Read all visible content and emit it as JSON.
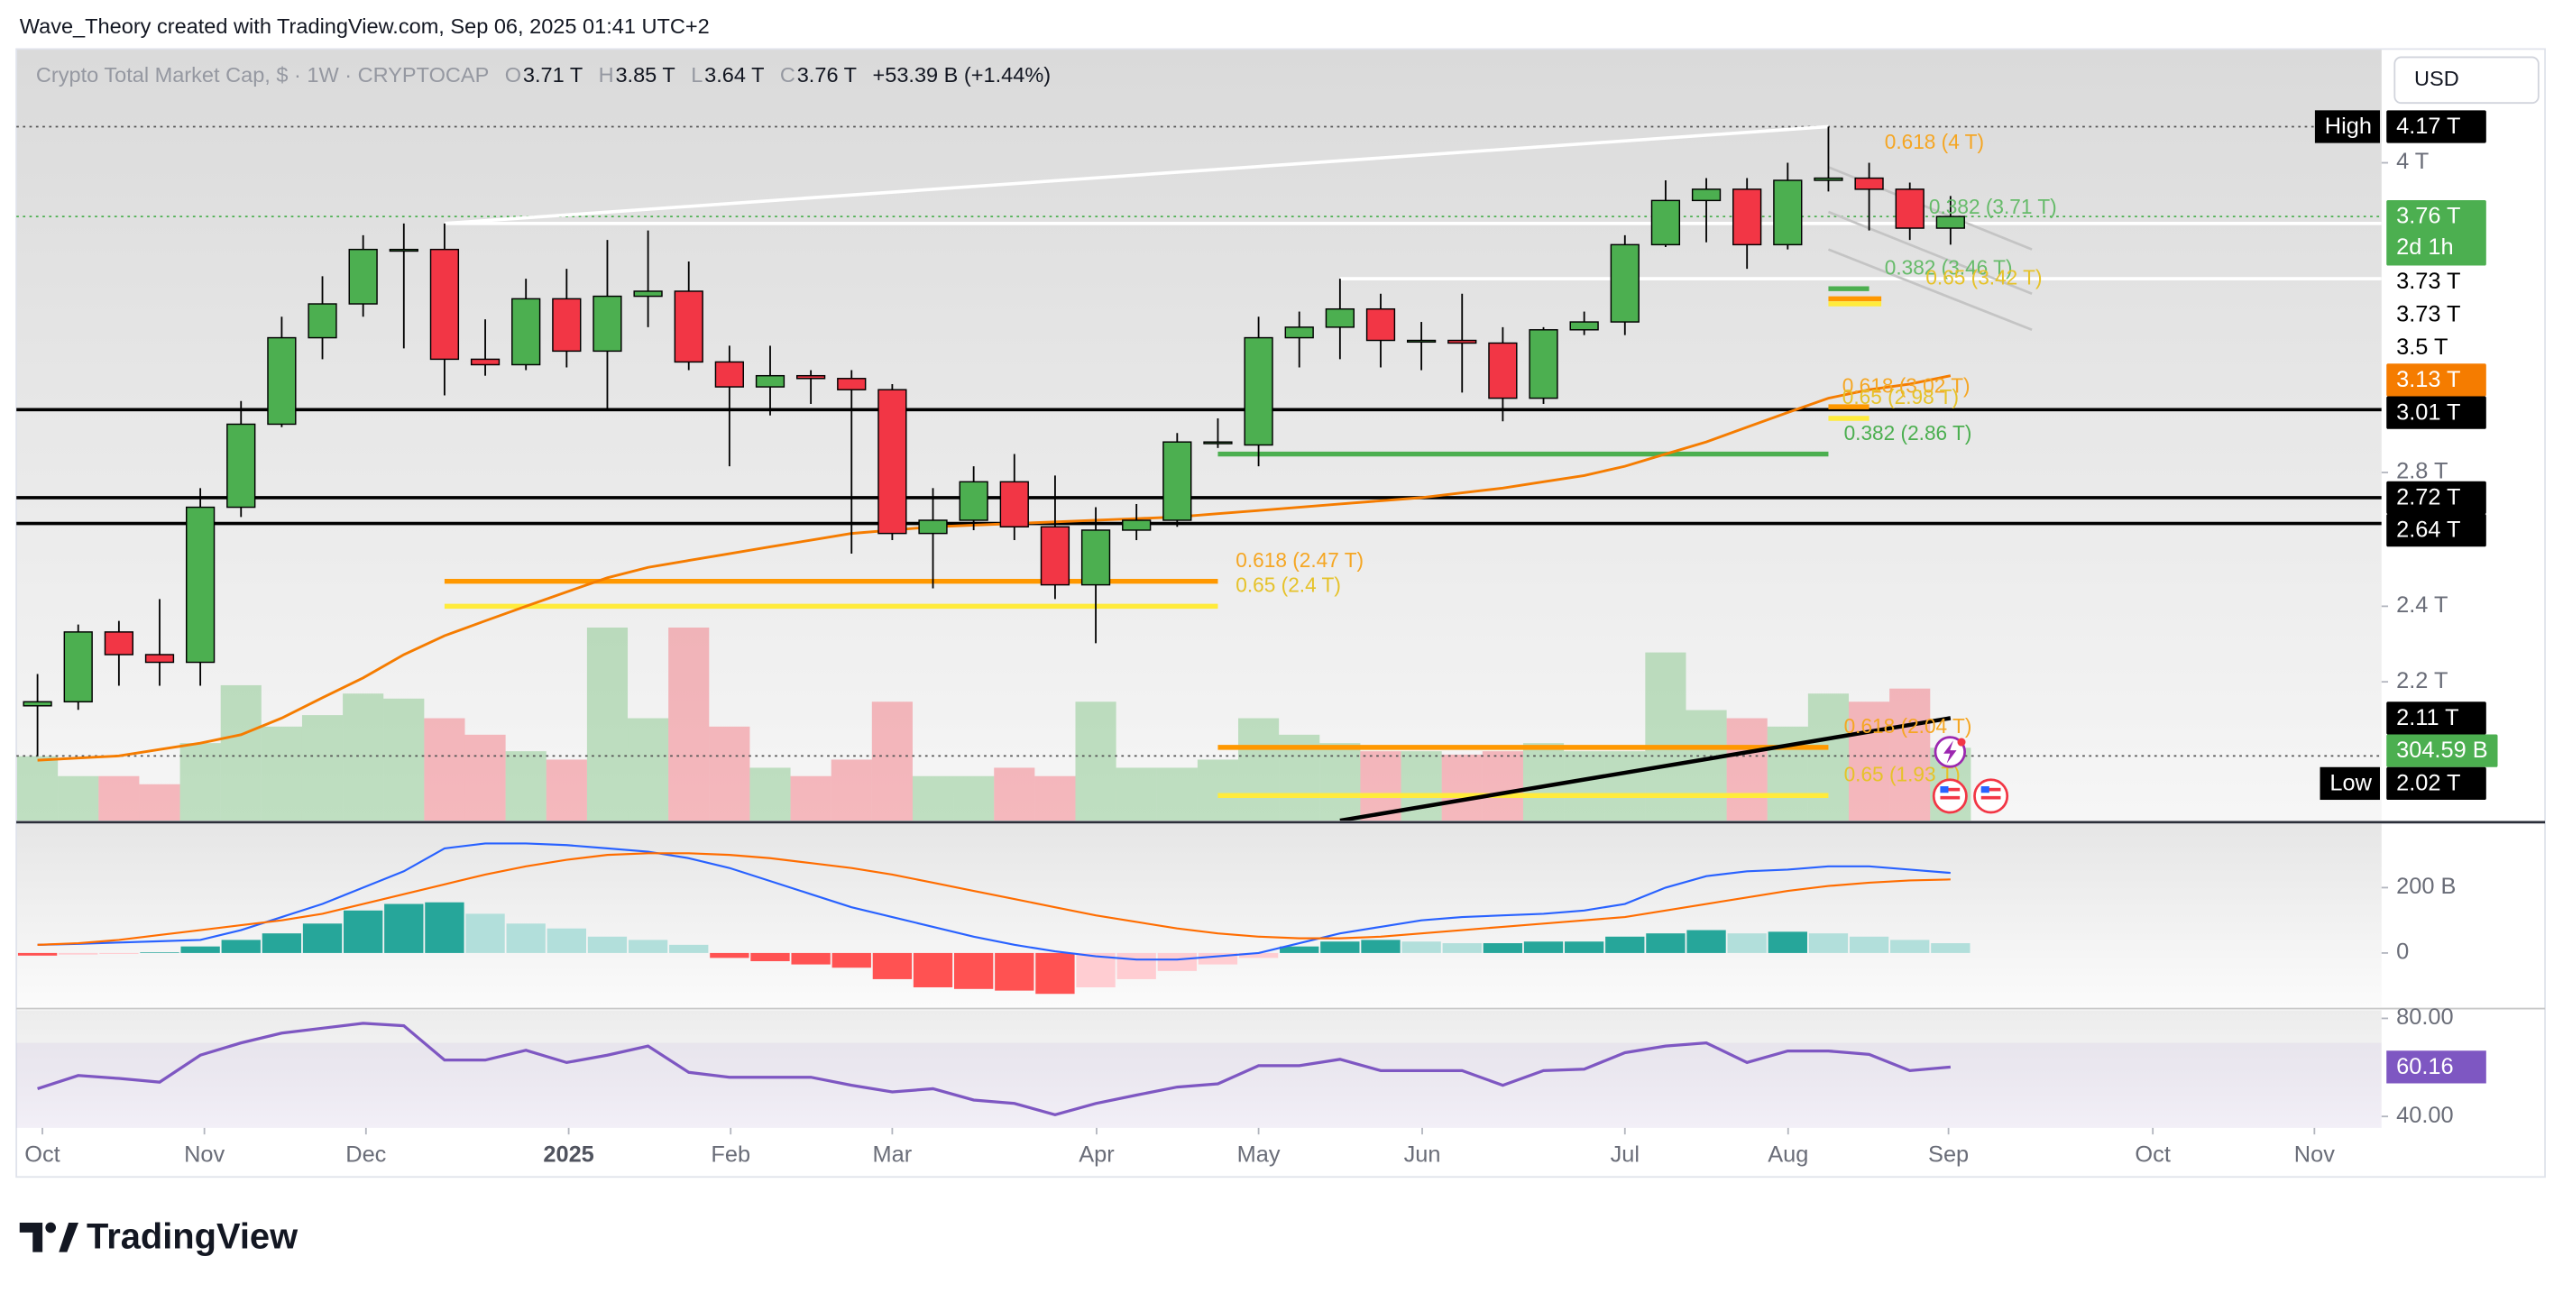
{
  "header": {
    "attribution": "Wave_Theory created with TradingView.com, Sep 06, 2025 01:41 UTC+2",
    "currency": "USD"
  },
  "legend": {
    "symbol": "Crypto Total Market Cap, $ · 1W · CRYPTOCAP",
    "fields": [
      {
        "key": "O",
        "value": "3.71 T"
      },
      {
        "key": "H",
        "value": "3.85 T"
      },
      {
        "key": "L",
        "value": "3.64 T"
      },
      {
        "key": "C",
        "value": "3.76 T"
      }
    ],
    "change": "+53.39 B (+1.44%)"
  },
  "footer": {
    "brand": "TradingView"
  },
  "chart_data": [
    {
      "type": "candlestick",
      "log_scale": true,
      "up_color": "#4caf50",
      "down_color": "#f23645",
      "wick_color": "#000000",
      "categories": [
        null,
        null,
        null,
        null,
        null,
        null,
        null,
        null,
        null,
        null,
        null,
        null,
        null,
        null,
        null,
        null,
        null,
        null,
        null,
        null,
        null,
        null,
        null,
        null,
        null,
        null,
        null,
        null,
        null,
        null,
        null,
        null,
        null,
        null,
        null,
        null,
        null,
        null,
        null,
        null,
        null,
        null,
        null,
        null,
        null,
        null,
        null,
        null
      ],
      "open": [
        2.14,
        2.15,
        2.33,
        2.27,
        2.25,
        2.69,
        2.96,
        3.27,
        3.4,
        3.62,
        3.62,
        3.19,
        3.17,
        3.42,
        3.22,
        3.43,
        3.45,
        3.18,
        3.09,
        3.13,
        3.12,
        3.08,
        2.61,
        2.65,
        2.77,
        2.63,
        2.46,
        2.62,
        2.65,
        2.9,
        2.89,
        3.27,
        3.31,
        3.38,
        3.26,
        3.26,
        3.25,
        3.05,
        3.3,
        3.33,
        3.64,
        3.83,
        3.88,
        3.64,
        3.92,
        3.93,
        3.88,
        3.71
      ],
      "high": [
        2.22,
        2.35,
        2.36,
        2.42,
        2.75,
        3.04,
        3.35,
        3.51,
        3.68,
        3.73,
        3.73,
        3.34,
        3.5,
        3.54,
        3.66,
        3.7,
        3.57,
        3.24,
        3.24,
        3.15,
        3.15,
        3.1,
        2.75,
        2.82,
        2.86,
        2.79,
        2.69,
        2.7,
        2.93,
        2.98,
        3.35,
        3.37,
        3.5,
        3.44,
        3.33,
        3.44,
        3.31,
        3.31,
        3.37,
        3.68,
        3.92,
        3.93,
        3.93,
        4.0,
        4.17,
        4.0,
        3.91,
        3.85
      ],
      "low": [
        2.02,
        2.13,
        2.19,
        2.19,
        2.19,
        2.66,
        2.95,
        3.19,
        3.35,
        3.23,
        3.06,
        3.13,
        3.15,
        3.16,
        3.01,
        3.31,
        3.15,
        2.82,
        2.99,
        3.03,
        2.55,
        2.59,
        2.45,
        2.62,
        2.59,
        2.42,
        2.3,
        2.59,
        2.63,
        2.88,
        2.82,
        3.16,
        3.19,
        3.16,
        3.15,
        3.07,
        2.97,
        3.03,
        3.28,
        3.28,
        3.63,
        3.65,
        3.54,
        3.62,
        3.87,
        3.7,
        3.66,
        3.64
      ],
      "close": [
        2.15,
        2.33,
        2.27,
        2.25,
        2.69,
        2.96,
        3.27,
        3.4,
        3.62,
        3.62,
        3.19,
        3.17,
        3.42,
        3.22,
        3.43,
        3.45,
        3.18,
        3.09,
        3.13,
        3.12,
        3.08,
        2.61,
        2.65,
        2.77,
        2.63,
        2.46,
        2.62,
        2.65,
        2.9,
        2.9,
        3.27,
        3.31,
        3.38,
        3.26,
        3.26,
        3.25,
        3.05,
        3.3,
        3.33,
        3.64,
        3.83,
        3.88,
        3.64,
        3.92,
        3.93,
        3.88,
        3.71,
        3.76
      ],
      "xlim": [
        -0.52,
        57.59
      ],
      "ylim": [
        1.875,
        4.56
      ],
      "yticks": [
        {
          "value": 4,
          "label": "4 T"
        },
        {
          "value": 2.8,
          "label": "2.8 T"
        },
        {
          "value": 2.4,
          "label": "2.4 T"
        },
        {
          "value": 2.2,
          "label": "2.2 T"
        }
      ],
      "moving_average": {
        "color": "#f57c00",
        "values": [
          2.01,
          2.015,
          2.02,
          2.035,
          2.05,
          2.07,
          2.11,
          2.16,
          2.21,
          2.27,
          2.32,
          2.36,
          2.4,
          2.44,
          2.48,
          2.51,
          2.53,
          2.55,
          2.57,
          2.59,
          2.61,
          2.62,
          2.63,
          2.635,
          2.64,
          2.645,
          2.65,
          2.655,
          2.66,
          2.67,
          2.68,
          2.69,
          2.7,
          2.71,
          2.72,
          2.735,
          2.75,
          2.77,
          2.79,
          2.82,
          2.86,
          2.9,
          2.95,
          3.0,
          3.05,
          3.08,
          3.1,
          3.13
        ]
      },
      "volume": {
        "ylim": [
          0,
          1000
        ],
        "opacity": 0.32,
        "values": [
          269,
          186,
          186,
          152,
          324,
          566,
          393,
          441,
          531,
          510,
          428,
          359,
          290,
          255,
          807,
          428,
          807,
          393,
          221,
          186,
          255,
          497,
          186,
          186,
          221,
          186,
          497,
          221,
          221,
          255,
          428,
          359,
          324,
          290,
          290,
          276,
          290,
          324,
          290,
          290,
          703,
          462,
          428,
          393,
          531,
          497,
          552,
          304.59
        ]
      },
      "lines": [
        {
          "price": 4.17,
          "x0": -0.52,
          "x1": 57.59,
          "color": "#555555",
          "width": 1,
          "dash": "dotted"
        },
        {
          "price": 3.76,
          "x0": -0.52,
          "x1": 57.59,
          "color": "#4caf50",
          "width": 1,
          "dash": "dotted"
        },
        {
          "price": 2.02,
          "x0": -0.52,
          "x1": 57.59,
          "color": "#555555",
          "width": 1,
          "dash": "dotted"
        },
        {
          "price": 3.73,
          "x0": 10.0,
          "x1": 57.59,
          "color": "#ffffff",
          "width": 2
        },
        {
          "price": 3.5,
          "x0": 32.0,
          "x1": 57.59,
          "color": "#ffffff",
          "width": 2
        },
        {
          "price": 3.01,
          "x0": -0.52,
          "x1": 57.59,
          "color": "#000000",
          "width": 2
        },
        {
          "price": 2.72,
          "x0": -0.52,
          "x1": 57.59,
          "color": "#000000",
          "width": 2
        },
        {
          "price": 2.64,
          "x0": -0.52,
          "x1": 57.59,
          "color": "#000000",
          "width": 2
        },
        {
          "price": 2.47,
          "x0": 10.0,
          "x1": 29.0,
          "color": "#ff9800",
          "width": 3
        },
        {
          "price": 2.4,
          "x0": 10.0,
          "x1": 29.0,
          "color": "#ffeb3b",
          "width": 3
        },
        {
          "price": 2.86,
          "x0": 29.0,
          "x1": 44.0,
          "color": "#4caf50",
          "width": 3
        },
        {
          "price": 2.04,
          "x0": 29.0,
          "x1": 44.0,
          "color": "#ff9800",
          "width": 3
        },
        {
          "price": 1.93,
          "x0": 29.0,
          "x1": 44.0,
          "color": "#ffeb3b",
          "width": 3
        },
        {
          "price": 3.46,
          "x0": 44.0,
          "x1": 45.0,
          "color": "#4caf50",
          "width": 3
        },
        {
          "price": 3.42,
          "x0": 44.0,
          "x1": 45.3,
          "color": "#ff9800",
          "width": 3
        },
        {
          "price": 3.4,
          "x0": 44.0,
          "x1": 45.3,
          "color": "#ffeb3b",
          "width": 3
        },
        {
          "price": 3.02,
          "x0": 44.0,
          "x1": 45.0,
          "color": "#ff9800",
          "width": 3
        },
        {
          "price": 2.98,
          "x0": 44.0,
          "x1": 45.0,
          "color": "#ffeb3b",
          "width": 3
        }
      ],
      "trendlines": [
        {
          "points": [
            [
              10.0,
              3.73
            ],
            [
              44.0,
              4.17
            ]
          ],
          "color": "#ffffff",
          "width": 2
        },
        {
          "points": [
            [
              32.0,
              1.875
            ],
            [
              47.0,
              2.11
            ]
          ],
          "color": "#000000",
          "width": 2.5
        },
        {
          "points": [
            [
              44.0,
              3.98
            ],
            [
              49.0,
              3.62
            ]
          ],
          "color": "#c4c4c4",
          "width": 1.5
        },
        {
          "points": [
            [
              44.0,
              3.78
            ],
            [
              49.0,
              3.44
            ]
          ],
          "color": "#c4c4c4",
          "width": 1.5
        },
        {
          "points": [
            [
              44.0,
              3.62
            ],
            [
              49.0,
              3.3
            ]
          ],
          "color": "#c4c4c4",
          "width": 1.5
        }
      ],
      "annotations": [
        {
          "text": "0.618 (4 T)",
          "x": 45.38,
          "price": 4.0,
          "color": "#f5a623"
        },
        {
          "text": "0.382 (3.71 T)",
          "x": 46.47,
          "price": 3.71,
          "color": "#66bb6a"
        },
        {
          "text": "0.382 (3.46 T)",
          "x": 45.38,
          "price": 3.46,
          "color": "#66bb6a"
        },
        {
          "text": "0.65 (3.42 T)",
          "x": 46.39,
          "price": 3.42,
          "color": "#e6c229"
        },
        {
          "text": "0.618 (3.02 T)",
          "x": 44.34,
          "price": 3.02,
          "color": "#f5a623"
        },
        {
          "text": "0.65 (2.98 T)",
          "x": 44.34,
          "price": 2.98,
          "color": "#e6c229"
        },
        {
          "text": "0.382 (2.86 T)",
          "x": 44.38,
          "price": 2.86,
          "color": "#4caf50"
        },
        {
          "text": "0.618 (2.47 T)",
          "x": 29.44,
          "price": 2.47,
          "color": "#f5a623"
        },
        {
          "text": "0.65 (2.4 T)",
          "x": 29.44,
          "price": 2.4,
          "color": "#e6c229"
        },
        {
          "text": "0.618 (2.04 T)",
          "x": 44.38,
          "price": 2.04,
          "color": "#f5a623"
        },
        {
          "text": "0.65 (1.93 T)",
          "x": 44.38,
          "price": 1.93,
          "color": "#e6c229"
        }
      ],
      "price_labels": [
        {
          "label": "4.17 T",
          "value": 4.17,
          "tag": "High",
          "bg": "#000000",
          "fg": "#ffffff"
        },
        {
          "label": "3.76 T",
          "value": 3.76,
          "sub": "2d 1h",
          "bg": "#4caf50",
          "fg": "#ffffff"
        },
        {
          "label": "3.73 T",
          "value": 3.73,
          "bg": "#ffffff",
          "fg": "#000000"
        },
        {
          "label": "3.73 T",
          "value": 3.73,
          "bg": "#ffffff",
          "fg": "#000000"
        },
        {
          "label": "3.5 T",
          "value": 3.5,
          "bg": "#ffffff",
          "fg": "#000000"
        },
        {
          "label": "3.13 T",
          "value": 3.13,
          "bg": "#f57c00",
          "fg": "#ffffff"
        },
        {
          "label": "3.01 T",
          "value": 3.01,
          "bg": "#000000",
          "fg": "#ffffff"
        },
        {
          "label": "2.72 T",
          "value": 2.72,
          "bg": "#000000",
          "fg": "#ffffff"
        },
        {
          "label": "2.64 T",
          "value": 2.64,
          "bg": "#000000",
          "fg": "#ffffff"
        },
        {
          "label": "2.11 T",
          "value": 2.11,
          "bg": "#000000",
          "fg": "#ffffff"
        },
        {
          "label": "304.59 B",
          "value": 304.59,
          "axis": "volume",
          "bg": "#4caf50",
          "fg": "#ffffff"
        },
        {
          "label": "2.02 T",
          "value": 2.02,
          "tag": "Low",
          "bg": "#000000",
          "fg": "#ffffff"
        }
      ]
    },
    {
      "type": "macd",
      "xlim": [
        -0.52,
        57.59
      ],
      "ylim": [
        -160,
        390
      ],
      "yticks": [
        {
          "value": 200,
          "label": "200 B"
        },
        0
      ],
      "histogram_colors": [
        "#26a69a",
        "#b2dfdb",
        "#ff5252",
        "#ffcdd2"
      ],
      "histogram": [
        -8,
        -5,
        -3,
        2,
        20,
        40,
        60,
        90,
        130,
        150,
        155,
        120,
        90,
        75,
        50,
        40,
        25,
        -15,
        -25,
        -35,
        -45,
        -80,
        -105,
        -110,
        -115,
        -125,
        -105,
        -80,
        -55,
        -35,
        -15,
        20,
        35,
        40,
        35,
        30,
        30,
        35,
        35,
        50,
        60,
        70,
        60,
        65,
        60,
        50,
        40,
        30
      ],
      "macd": {
        "color": "#2962ff",
        "values": [
          25,
          28,
          32,
          36,
          40,
          70,
          110,
          150,
          200,
          250,
          320,
          335,
          335,
          330,
          320,
          310,
          290,
          260,
          220,
          180,
          140,
          110,
          80,
          50,
          25,
          5,
          -10,
          -20,
          -20,
          -10,
          0,
          30,
          60,
          80,
          100,
          110,
          115,
          120,
          130,
          150,
          200,
          235,
          250,
          255,
          265,
          265,
          255,
          245
        ]
      },
      "signal": {
        "color": "#ff6d00",
        "values": [
          25,
          30,
          40,
          55,
          70,
          85,
          100,
          120,
          150,
          180,
          210,
          240,
          265,
          285,
          300,
          305,
          305,
          300,
          290,
          275,
          260,
          240,
          215,
          190,
          165,
          140,
          115,
          95,
          75,
          60,
          50,
          45,
          45,
          50,
          60,
          70,
          80,
          90,
          100,
          110,
          130,
          150,
          170,
          190,
          205,
          215,
          222,
          225
        ]
      }
    },
    {
      "type": "line",
      "color": "#7e57c2",
      "band": [
        30,
        70
      ],
      "xlim": [
        -0.52,
        57.59
      ],
      "ylim": [
        35.33,
        83.33
      ],
      "yticks": [
        {
          "value": 80,
          "label": "80.00"
        },
        {
          "value": 40,
          "label": "40.00"
        }
      ],
      "values": [
        51.3,
        56.7,
        55.5,
        54,
        65,
        70,
        74,
        76,
        78,
        77,
        63,
        63,
        67,
        62,
        65,
        68.7,
        58,
        56,
        56,
        56,
        52.7,
        50,
        51.3,
        46.7,
        45.3,
        40.7,
        45.3,
        48.7,
        52,
        53.3,
        60.7,
        60.7,
        63.3,
        58.7,
        58.7,
        58.7,
        52.7,
        58.7,
        59.3,
        66,
        68.7,
        70,
        62,
        66.7,
        66.7,
        65.3,
        58.7,
        60.16
      ],
      "xticks": [
        {
          "value": 0.12,
          "label": "Oct"
        },
        {
          "value": 4.1,
          "label": "Nov"
        },
        {
          "value": 8.07,
          "label": "Dec"
        },
        {
          "value": 13.05,
          "label": "2025",
          "bold": true
        },
        {
          "value": 17.03,
          "label": "Feb"
        },
        {
          "value": 21.0,
          "label": "Mar"
        },
        {
          "value": 26.02,
          "label": "Apr"
        },
        {
          "value": 30.0,
          "label": "May"
        },
        {
          "value": 34.02,
          "label": "Jun"
        },
        {
          "value": 39.0,
          "label": "Jul"
        },
        {
          "value": 43.01,
          "label": "Aug"
        },
        {
          "value": 46.95,
          "label": "Sep"
        },
        {
          "value": 51.97,
          "label": "Oct"
        },
        {
          "value": 55.94,
          "label": "Nov"
        }
      ]
    }
  ]
}
